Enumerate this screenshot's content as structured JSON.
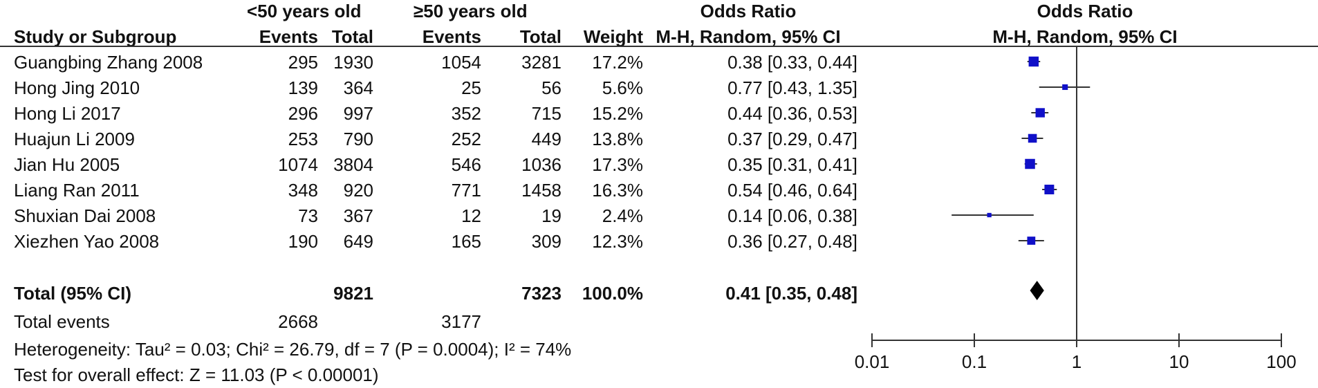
{
  "header": {
    "group1": "<50 years old",
    "group2": "≥50 years old",
    "or_title": "Odds Ratio",
    "or_method": "M-H, Random, 95% CI",
    "plot_title": "Odds Ratio",
    "plot_method": "M-H, Random, 95% CI",
    "study": "Study or Subgroup",
    "events1": "Events",
    "total1": "Total",
    "events2": "Events",
    "total2": "Total",
    "weight": "Weight"
  },
  "rows": [
    {
      "study": "Guangbing Zhang 2008",
      "e1": "295",
      "t1": "1930",
      "e2": "1054",
      "t2": "3281",
      "weight": "17.2%",
      "or": "0.38 [0.33, 0.44]"
    },
    {
      "study": "Hong Jing 2010",
      "e1": "139",
      "t1": "364",
      "e2": "25",
      "t2": "56",
      "weight": "5.6%",
      "or": "0.77 [0.43, 1.35]"
    },
    {
      "study": "Hong Li 2017",
      "e1": "296",
      "t1": "997",
      "e2": "352",
      "t2": "715",
      "weight": "15.2%",
      "or": "0.44 [0.36, 0.53]"
    },
    {
      "study": "Huajun Li 2009",
      "e1": "253",
      "t1": "790",
      "e2": "252",
      "t2": "449",
      "weight": "13.8%",
      "or": "0.37 [0.29, 0.47]"
    },
    {
      "study": "Jian Hu 2005",
      "e1": "1074",
      "t1": "3804",
      "e2": "546",
      "t2": "1036",
      "weight": "17.3%",
      "or": "0.35 [0.31, 0.41]"
    },
    {
      "study": "Liang Ran 2011",
      "e1": "348",
      "t1": "920",
      "e2": "771",
      "t2": "1458",
      "weight": "16.3%",
      "or": "0.54 [0.46, 0.64]"
    },
    {
      "study": "Shuxian Dai 2008",
      "e1": "73",
      "t1": "367",
      "e2": "12",
      "t2": "19",
      "weight": "2.4%",
      "or": "0.14 [0.06, 0.38]"
    },
    {
      "study": "Xiezhen Yao 2008",
      "e1": "190",
      "t1": "649",
      "e2": "165",
      "t2": "309",
      "weight": "12.3%",
      "or": "0.36 [0.27, 0.48]"
    }
  ],
  "total": {
    "label": "Total (95% CI)",
    "t1": "9821",
    "t2": "7323",
    "weight": "100.0%",
    "or": "0.41 [0.35, 0.48]"
  },
  "events": {
    "label": "Total events",
    "e1": "2668",
    "e2": "3177"
  },
  "heterogeneity": "Heterogeneity: Tau² = 0.03; Chi² = 26.79, df = 7 (P = 0.0004); I² = 74%",
  "overall": "Test for overall effect: Z = 11.03 (P < 0.00001)",
  "colors": {
    "marker": "#1010c8",
    "diamond": "#000000",
    "lines": "#333333"
  },
  "chart_data": {
    "type": "scatter",
    "subtype": "forest",
    "scale": "log",
    "xlim": [
      0.01,
      100
    ],
    "ticks": [
      0.01,
      0.1,
      1,
      10,
      100
    ],
    "tick_labels": [
      "0.01",
      "0.1",
      "1",
      "10",
      "100"
    ],
    "reference_line": 1,
    "studies": [
      {
        "name": "Guangbing Zhang 2008",
        "or": 0.38,
        "lo": 0.33,
        "hi": 0.44,
        "weight": 17.2
      },
      {
        "name": "Hong Jing 2010",
        "or": 0.77,
        "lo": 0.43,
        "hi": 1.35,
        "weight": 5.6
      },
      {
        "name": "Hong Li 2017",
        "or": 0.44,
        "lo": 0.36,
        "hi": 0.53,
        "weight": 15.2
      },
      {
        "name": "Huajun Li 2009",
        "or": 0.37,
        "lo": 0.29,
        "hi": 0.47,
        "weight": 13.8
      },
      {
        "name": "Jian Hu 2005",
        "or": 0.35,
        "lo": 0.31,
        "hi": 0.41,
        "weight": 17.3
      },
      {
        "name": "Liang Ran 2011",
        "or": 0.54,
        "lo": 0.46,
        "hi": 0.64,
        "weight": 16.3
      },
      {
        "name": "Shuxian Dai 2008",
        "or": 0.14,
        "lo": 0.06,
        "hi": 0.38,
        "weight": 2.4
      },
      {
        "name": "Xiezhen Yao 2008",
        "or": 0.36,
        "lo": 0.27,
        "hi": 0.48,
        "weight": 12.3
      }
    ],
    "pooled": {
      "or": 0.41,
      "lo": 0.35,
      "hi": 0.48
    }
  }
}
